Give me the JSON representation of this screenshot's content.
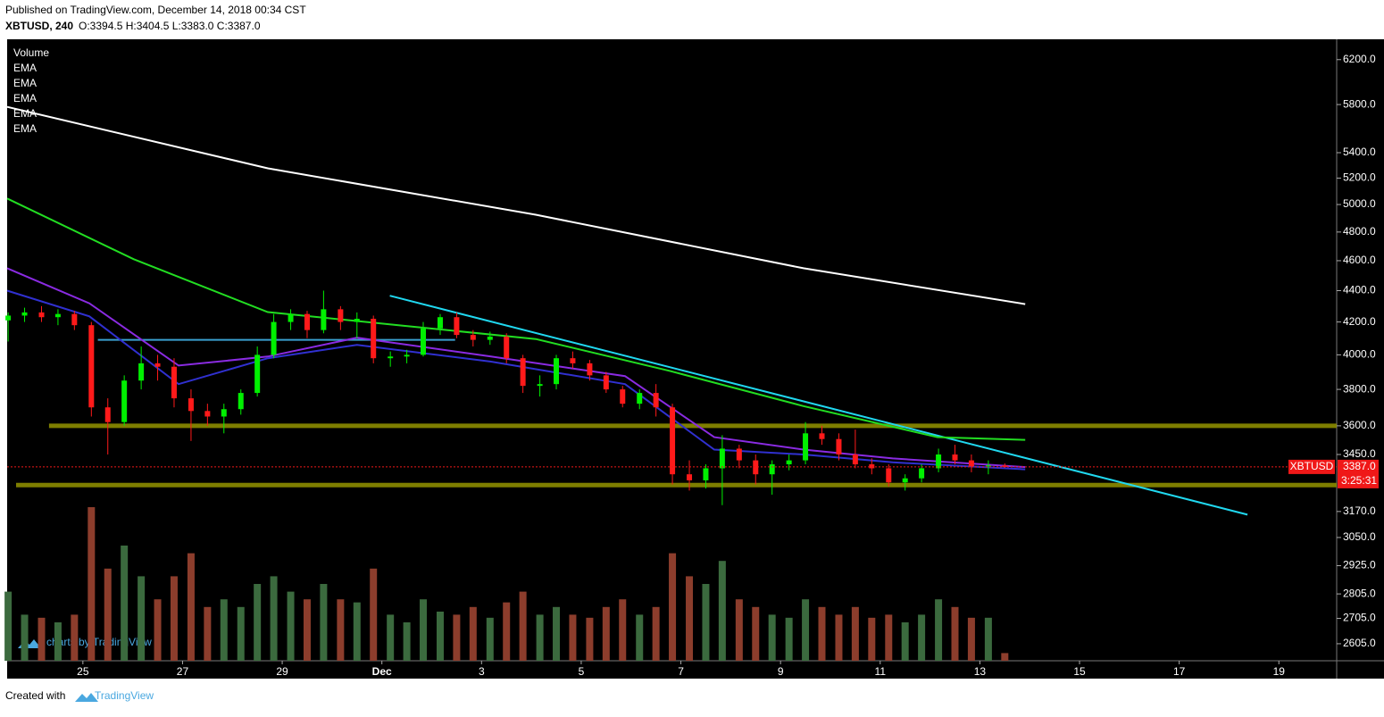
{
  "header": {
    "published": "Published on TradingView.com, December 14, 2018 00:34 CST",
    "symbol": "XBTUSD, 240",
    "ohlc": "O:3394.5 H:3404.5 L:3383.0 C:3387.0"
  },
  "footer": {
    "created_with": "Created with",
    "brand": "TradingView"
  },
  "chart_data": {
    "type": "candlestick",
    "legend": [
      "Volume",
      "EMA",
      "EMA",
      "EMA",
      "EMA",
      "EMA"
    ],
    "watermark": "charts by TradingView",
    "x": [
      23.5,
      23.83,
      24.17,
      24.5,
      24.83,
      25.17,
      25.5,
      25.83,
      26.17,
      26.5,
      26.83,
      27.17,
      27.5,
      27.83,
      28.17,
      28.5,
      28.83,
      29.17,
      29.5,
      29.83,
      30.17,
      30.5,
      30.83,
      31.17,
      31.5,
      31.83,
      32.17,
      32.5,
      32.83,
      33.17,
      33.5,
      33.83,
      34.17,
      34.5,
      34.83,
      35.17,
      35.5,
      35.83,
      36.17,
      36.5,
      36.83,
      37.17,
      37.5,
      37.83,
      38.17,
      38.5,
      38.83,
      39.17,
      39.5,
      39.83,
      40.17,
      40.5,
      40.83,
      41.17,
      41.5,
      41.83,
      42.17,
      42.5,
      42.83,
      43.17,
      43.5
    ],
    "open": [
      4210,
      4240,
      4260,
      4230,
      4250,
      4180,
      3700,
      3620,
      3850,
      3950,
      3930,
      3750,
      3680,
      3650,
      3690,
      3780,
      4000,
      4200,
      4250,
      4150,
      4280,
      4200,
      4220,
      3980,
      3990,
      4000,
      4160,
      4230,
      4120,
      4090,
      4110,
      3980,
      3820,
      3830,
      3980,
      3950,
      3880,
      3800,
      3720,
      3780,
      3700,
      3350,
      3320,
      3380,
      3480,
      3420,
      3350,
      3400,
      3420,
      3560,
      3530,
      3450,
      3400,
      3380,
      3310,
      3330,
      3380,
      3450,
      3420,
      3390,
      3394.5
    ],
    "high": [
      4260,
      4290,
      4300,
      4280,
      4270,
      4200,
      3750,
      3880,
      4050,
      4000,
      3980,
      3800,
      3720,
      3720,
      3800,
      4050,
      4250,
      4280,
      4270,
      4400,
      4300,
      4260,
      4240,
      4020,
      4030,
      4200,
      4250,
      4260,
      4150,
      4140,
      4130,
      4000,
      3880,
      4000,
      4020,
      3970,
      3900,
      3820,
      3800,
      3830,
      3720,
      3420,
      3400,
      3550,
      3500,
      3450,
      3420,
      3450,
      3620,
      3600,
      3560,
      3580,
      3430,
      3400,
      3350,
      3400,
      3480,
      3500,
      3450,
      3420,
      3404.5
    ],
    "low": [
      4080,
      4200,
      4200,
      4180,
      4150,
      3650,
      3450,
      3600,
      3800,
      3850,
      3700,
      3520,
      3600,
      3560,
      3660,
      3760,
      3980,
      4150,
      4100,
      4130,
      4150,
      4100,
      3950,
      3930,
      3950,
      3990,
      4120,
      4100,
      4050,
      4060,
      3950,
      3780,
      3760,
      3800,
      3920,
      3850,
      3780,
      3700,
      3690,
      3650,
      3300,
      3270,
      3280,
      3200,
      3380,
      3300,
      3250,
      3370,
      3400,
      3500,
      3420,
      3380,
      3350,
      3290,
      3270,
      3310,
      3360,
      3400,
      3360,
      3350,
      3383
    ],
    "close": [
      4240,
      4260,
      4230,
      4250,
      4180,
      3700,
      3620,
      3850,
      3950,
      3930,
      3750,
      3680,
      3650,
      3690,
      3780,
      4000,
      4200,
      4250,
      4150,
      4280,
      4200,
      4220,
      3980,
      3990,
      4000,
      4160,
      4230,
      4120,
      4090,
      4110,
      3980,
      3820,
      3830,
      3980,
      3950,
      3880,
      3800,
      3720,
      3780,
      3700,
      3350,
      3320,
      3380,
      3480,
      3420,
      3350,
      3400,
      3420,
      3560,
      3530,
      3450,
      3400,
      3380,
      3310,
      3330,
      3380,
      3450,
      3420,
      3390,
      3394.5,
      3387
    ],
    "volume": [
      45,
      30,
      28,
      25,
      30,
      100,
      60,
      75,
      55,
      40,
      55,
      70,
      35,
      40,
      35,
      50,
      55,
      45,
      40,
      50,
      40,
      38,
      60,
      30,
      25,
      40,
      32,
      30,
      35,
      28,
      38,
      45,
      30,
      35,
      30,
      28,
      35,
      40,
      30,
      35,
      70,
      55,
      50,
      65,
      40,
      35,
      30,
      28,
      40,
      35,
      30,
      35,
      28,
      30,
      25,
      30,
      40,
      35,
      28,
      28,
      5
    ],
    "up_color": "#00f000",
    "down_color": "#ff1a1a",
    "volume_up_color": "#3b6a3e",
    "volume_down_color": "#8c3d2c",
    "ema": [
      {
        "color": "#ffffff",
        "x": [
          23.48,
          28.71,
          34.09,
          39.46,
          43.91
        ],
        "values": [
          5780,
          5276,
          4925,
          4549,
          4313
        ]
      },
      {
        "color": "#22dd22",
        "x": [
          23.48,
          26.02,
          28.71,
          31.4,
          34.09,
          36.77,
          39.46,
          42.15,
          43.91
        ],
        "values": [
          5045,
          4610,
          4262,
          4178,
          4095,
          3906,
          3707,
          3540,
          3526
        ]
      },
      {
        "color": "#8a2be2",
        "x": [
          23.48,
          25.13,
          26.92,
          28.71,
          30.5,
          33.19,
          35.88,
          37.67,
          39.46,
          41.25,
          43.91
        ],
        "values": [
          4549,
          4318,
          3937,
          3990,
          4103,
          3990,
          3876,
          3540,
          3475,
          3430,
          3386
        ]
      },
      {
        "color": "#3030d0",
        "x": [
          23.48,
          25.13,
          26.92,
          28.71,
          30.5,
          33.19,
          35.88,
          37.67,
          39.46,
          41.25,
          43.91
        ],
        "values": [
          4400,
          4235,
          3830,
          3980,
          4060,
          3960,
          3830,
          3475,
          3450,
          3410,
          3375
        ]
      }
    ],
    "drawings": [
      {
        "color": "#3aa0d0",
        "x": [
          25.3,
          32.47
        ],
        "values": [
          4090,
          4090
        ]
      },
      {
        "color": "#8c8c00",
        "x": [
          24.32,
          50.16
        ],
        "values": [
          3600,
          3600
        ]
      },
      {
        "color": "#8c8c00",
        "x": [
          23.66,
          50.16
        ],
        "values": [
          3297,
          3297
        ]
      },
      {
        "color": "#20d8f0",
        "x": [
          31.16,
          48.37
        ],
        "values": [
          4367,
          3155
        ]
      }
    ],
    "xlim": [
      23.48,
      50.16
    ],
    "xticks": [
      25,
      27,
      29,
      {
        "value": 31,
        "label": "Dec"
      },
      {
        "value": 33,
        "label": "3"
      },
      {
        "value": 35,
        "label": "5"
      },
      {
        "value": 37,
        "label": "7"
      },
      {
        "value": 39,
        "label": "9"
      },
      {
        "value": 41,
        "label": "11"
      },
      {
        "value": 43,
        "label": "13"
      },
      {
        "value": 45,
        "label": "15"
      },
      {
        "value": 47,
        "label": "17"
      },
      {
        "value": 49,
        "label": "19"
      }
    ],
    "ylim": [
      2540,
      6390
    ],
    "log_scale": true,
    "yticks": [
      {
        "value": 6200,
        "label": "6200.0"
      },
      {
        "value": 5800,
        "label": "5800.0"
      },
      {
        "value": 5400,
        "label": "5400.0"
      },
      {
        "value": 5200,
        "label": "5200.0"
      },
      {
        "value": 5000,
        "label": "5000.0"
      },
      {
        "value": 4800,
        "label": "4800.0"
      },
      {
        "value": 4600,
        "label": "4600.0"
      },
      {
        "value": 4400,
        "label": "4400.0"
      },
      {
        "value": 4200,
        "label": "4200.0"
      },
      {
        "value": 4000,
        "label": "4000.0"
      },
      {
        "value": 3800,
        "label": "3800.0"
      },
      {
        "value": 3600,
        "label": "3600.0"
      },
      {
        "value": 3450,
        "label": "3450.0"
      },
      {
        "value": 3170,
        "label": "3170.0"
      },
      {
        "value": 3050,
        "label": "3050.0"
      },
      {
        "value": 2925,
        "label": "2925.0"
      },
      {
        "value": 2805,
        "label": "2805.0"
      },
      {
        "value": 2705,
        "label": "2705.0"
      },
      {
        "value": 2605,
        "label": "2605.0"
      }
    ],
    "last_price": {
      "value": 3387,
      "label": "3387.0"
    },
    "symbol_label": "XBTUSD",
    "countdown": "3:25:31",
    "price_color": "#f01818"
  }
}
